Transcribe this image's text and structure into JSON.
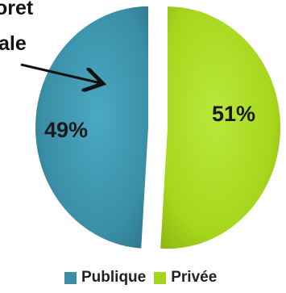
{
  "title_lines": [
    "oret",
    "ale"
  ],
  "chart_data": {
    "type": "pie",
    "title": "",
    "slices": [
      {
        "label": "Publique",
        "value": 49,
        "display": "49%",
        "color": "#3a8ea6"
      },
      {
        "label": "Privée",
        "value": 51,
        "display": "51%",
        "color": "#a6d61c"
      }
    ],
    "legend_position": "bottom",
    "exploded": true
  }
}
